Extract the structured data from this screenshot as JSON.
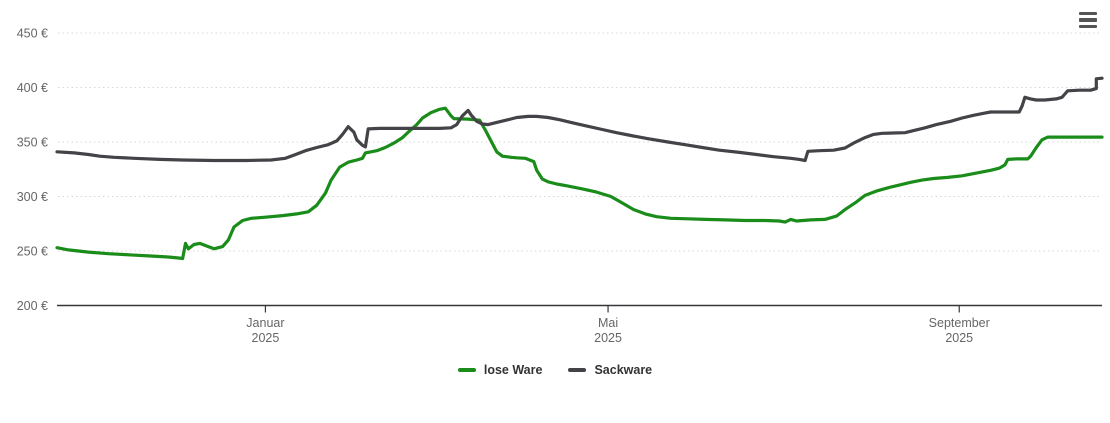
{
  "header": {
    "context_menu_icon": "hamburger-menu-icon"
  },
  "chart_data": {
    "type": "line",
    "title": "",
    "xlabel": "",
    "ylabel": "",
    "y_unit": "€",
    "ylim": [
      200,
      450
    ],
    "xlim": [
      "2024-10-20",
      "2025-10-21"
    ],
    "grid": "dotted-horizontal",
    "legend_position": "bottom-center",
    "colors": {
      "lose_ware": "#1a8c1a",
      "sackware": "#434348",
      "grid_line": "#d8d8d8",
      "axis_line": "#37373a",
      "axis_text": "#666666",
      "legend_text": "#333333"
    },
    "y_ticks": [
      {
        "value": 450,
        "label": "450 €"
      },
      {
        "value": 400,
        "label": "400 €"
      },
      {
        "value": 350,
        "label": "350 €"
      },
      {
        "value": 300,
        "label": "300 €"
      },
      {
        "value": 250,
        "label": "250 €"
      },
      {
        "value": 200,
        "label": "200 €"
      }
    ],
    "x_ticks": [
      {
        "date": "2025-01-01",
        "label": "Januar",
        "sublabel": "2025"
      },
      {
        "date": "2025-05-01",
        "label": "Mai",
        "sublabel": "2025"
      },
      {
        "date": "2025-09-01",
        "label": "September",
        "sublabel": "2025"
      }
    ],
    "series": [
      {
        "name": "lose Ware",
        "color": "#1a8c1a",
        "points": [
          [
            "2024-10-20",
            253
          ],
          [
            "2024-10-24",
            251
          ],
          [
            "2024-10-31",
            249
          ],
          [
            "2024-11-07",
            247.5
          ],
          [
            "2024-11-14",
            246.5
          ],
          [
            "2024-11-21",
            245.5
          ],
          [
            "2024-11-28",
            244.5
          ],
          [
            "2024-12-02",
            243.5
          ],
          [
            "2024-12-03",
            243
          ],
          [
            "2024-12-04",
            257
          ],
          [
            "2024-12-05",
            252
          ],
          [
            "2024-12-07",
            256
          ],
          [
            "2024-12-09",
            257
          ],
          [
            "2024-12-12",
            254
          ],
          [
            "2024-12-14",
            252
          ],
          [
            "2024-12-17",
            254
          ],
          [
            "2024-12-19",
            260
          ],
          [
            "2024-12-21",
            272
          ],
          [
            "2024-12-24",
            278
          ],
          [
            "2024-12-27",
            280
          ],
          [
            "2025-01-01",
            281
          ],
          [
            "2025-01-07",
            282.5
          ],
          [
            "2025-01-12",
            284
          ],
          [
            "2025-01-16",
            286
          ],
          [
            "2025-01-19",
            292
          ],
          [
            "2025-01-22",
            303
          ],
          [
            "2025-01-24",
            315
          ],
          [
            "2025-01-27",
            327
          ],
          [
            "2025-01-30",
            331.5
          ],
          [
            "2025-02-02",
            333.5
          ],
          [
            "2025-02-04",
            335
          ],
          [
            "2025-02-05",
            340
          ],
          [
            "2025-02-09",
            342
          ],
          [
            "2025-02-12",
            345
          ],
          [
            "2025-02-15",
            349
          ],
          [
            "2025-02-18",
            354
          ],
          [
            "2025-02-20",
            359
          ],
          [
            "2025-02-23",
            366
          ],
          [
            "2025-02-25",
            372
          ],
          [
            "2025-02-28",
            377
          ],
          [
            "2025-03-03",
            380
          ],
          [
            "2025-03-05",
            381
          ],
          [
            "2025-03-07",
            374
          ],
          [
            "2025-03-08",
            371.5
          ],
          [
            "2025-03-13",
            371
          ],
          [
            "2025-03-17",
            370
          ],
          [
            "2025-03-19",
            361
          ],
          [
            "2025-03-21",
            351
          ],
          [
            "2025-03-23",
            341
          ],
          [
            "2025-03-25",
            337
          ],
          [
            "2025-03-28",
            336
          ],
          [
            "2025-03-30",
            335.5
          ],
          [
            "2025-04-02",
            335
          ],
          [
            "2025-04-05",
            332
          ],
          [
            "2025-04-06",
            324
          ],
          [
            "2025-04-08",
            316
          ],
          [
            "2025-04-10",
            313.5
          ],
          [
            "2025-04-13",
            311.5
          ],
          [
            "2025-04-17",
            309.5
          ],
          [
            "2025-04-22",
            307
          ],
          [
            "2025-04-27",
            304
          ],
          [
            "2025-05-02",
            300
          ],
          [
            "2025-05-06",
            294
          ],
          [
            "2025-05-10",
            288
          ],
          [
            "2025-05-14",
            284
          ],
          [
            "2025-05-18",
            281.5
          ],
          [
            "2025-05-23",
            280
          ],
          [
            "2025-05-29",
            279.5
          ],
          [
            "2025-06-04",
            279
          ],
          [
            "2025-06-11",
            278.5
          ],
          [
            "2025-06-18",
            278
          ],
          [
            "2025-06-25",
            278
          ],
          [
            "2025-06-30",
            277.5
          ],
          [
            "2025-07-02",
            276.5
          ],
          [
            "2025-07-04",
            279
          ],
          [
            "2025-07-06",
            277.5
          ],
          [
            "2025-07-11",
            278.5
          ],
          [
            "2025-07-16",
            279
          ],
          [
            "2025-07-20",
            282
          ],
          [
            "2025-07-23",
            288
          ],
          [
            "2025-07-27",
            295
          ],
          [
            "2025-07-30",
            301
          ],
          [
            "2025-08-03",
            305
          ],
          [
            "2025-08-07",
            308
          ],
          [
            "2025-08-11",
            310.5
          ],
          [
            "2025-08-15",
            313
          ],
          [
            "2025-08-19",
            315
          ],
          [
            "2025-08-23",
            316.5
          ],
          [
            "2025-08-28",
            317.5
          ],
          [
            "2025-09-02",
            319
          ],
          [
            "2025-09-07",
            321.5
          ],
          [
            "2025-09-12",
            324
          ],
          [
            "2025-09-15",
            326
          ],
          [
            "2025-09-17",
            329
          ],
          [
            "2025-09-18",
            334
          ],
          [
            "2025-09-21",
            334.5
          ],
          [
            "2025-09-25",
            334.5
          ],
          [
            "2025-09-26",
            337
          ],
          [
            "2025-09-28",
            345
          ],
          [
            "2025-09-30",
            352
          ],
          [
            "2025-10-02",
            354.5
          ],
          [
            "2025-10-08",
            354.5
          ],
          [
            "2025-10-15",
            354.5
          ],
          [
            "2025-10-21",
            354.5
          ]
        ]
      },
      {
        "name": "Sackware",
        "color": "#434348",
        "points": [
          [
            "2024-10-20",
            341
          ],
          [
            "2024-10-26",
            340
          ],
          [
            "2024-10-31",
            338.5
          ],
          [
            "2024-11-04",
            337
          ],
          [
            "2024-11-09",
            336
          ],
          [
            "2024-11-16",
            335
          ],
          [
            "2024-11-25",
            334
          ],
          [
            "2024-12-03",
            333.5
          ],
          [
            "2024-12-14",
            333
          ],
          [
            "2024-12-25",
            333
          ],
          [
            "2025-01-03",
            333.5
          ],
          [
            "2025-01-08",
            335
          ],
          [
            "2025-01-11",
            338
          ],
          [
            "2025-01-15",
            342
          ],
          [
            "2025-01-19",
            345
          ],
          [
            "2025-01-23",
            347.5
          ],
          [
            "2025-01-26",
            351
          ],
          [
            "2025-01-28",
            357
          ],
          [
            "2025-01-30",
            364
          ],
          [
            "2025-02-01",
            359
          ],
          [
            "2025-02-02",
            352
          ],
          [
            "2025-02-04",
            347
          ],
          [
            "2025-02-05",
            345.5
          ],
          [
            "2025-02-06",
            362
          ],
          [
            "2025-02-10",
            362.5
          ],
          [
            "2025-02-17",
            362.5
          ],
          [
            "2025-02-24",
            362.5
          ],
          [
            "2025-03-03",
            362.5
          ],
          [
            "2025-03-07",
            363
          ],
          [
            "2025-03-09",
            366
          ],
          [
            "2025-03-11",
            374
          ],
          [
            "2025-03-13",
            379
          ],
          [
            "2025-03-14",
            375
          ],
          [
            "2025-03-16",
            369
          ],
          [
            "2025-03-18",
            366.5
          ],
          [
            "2025-03-20",
            366
          ],
          [
            "2025-03-23",
            368
          ],
          [
            "2025-03-27",
            370.5
          ],
          [
            "2025-03-30",
            372.5
          ],
          [
            "2025-04-03",
            373.5
          ],
          [
            "2025-04-06",
            373.5
          ],
          [
            "2025-04-10",
            372.5
          ],
          [
            "2025-04-14",
            370.5
          ],
          [
            "2025-04-18",
            368
          ],
          [
            "2025-04-23",
            365
          ],
          [
            "2025-04-29",
            361.5
          ],
          [
            "2025-05-04",
            358.5
          ],
          [
            "2025-05-09",
            356
          ],
          [
            "2025-05-15",
            353
          ],
          [
            "2025-05-22",
            350
          ],
          [
            "2025-05-28",
            347.5
          ],
          [
            "2025-06-03",
            345
          ],
          [
            "2025-06-09",
            342.5
          ],
          [
            "2025-06-16",
            340.5
          ],
          [
            "2025-06-22",
            338.5
          ],
          [
            "2025-06-28",
            336.5
          ],
          [
            "2025-07-04",
            335
          ],
          [
            "2025-07-07",
            334
          ],
          [
            "2025-07-09",
            333
          ],
          [
            "2025-07-10",
            341.5
          ],
          [
            "2025-07-14",
            342
          ],
          [
            "2025-07-19",
            342.5
          ],
          [
            "2025-07-23",
            344.5
          ],
          [
            "2025-07-26",
            349
          ],
          [
            "2025-07-30",
            354
          ],
          [
            "2025-08-02",
            357
          ],
          [
            "2025-08-05",
            358
          ],
          [
            "2025-08-13",
            358.5
          ],
          [
            "2025-08-16",
            360.5
          ],
          [
            "2025-08-20",
            363
          ],
          [
            "2025-08-24",
            366
          ],
          [
            "2025-08-29",
            369
          ],
          [
            "2025-09-02",
            372
          ],
          [
            "2025-09-06",
            374.5
          ],
          [
            "2025-09-10",
            376.5
          ],
          [
            "2025-09-12",
            377.5
          ],
          [
            "2025-09-18",
            377.5
          ],
          [
            "2025-09-22",
            377.5
          ],
          [
            "2025-09-23",
            383
          ],
          [
            "2025-09-24",
            391
          ],
          [
            "2025-09-26",
            389.5
          ],
          [
            "2025-09-28",
            388.5
          ],
          [
            "2025-10-01",
            388.5
          ],
          [
            "2025-10-05",
            389.5
          ],
          [
            "2025-10-07",
            391
          ],
          [
            "2025-10-08",
            394
          ],
          [
            "2025-10-09",
            397
          ],
          [
            "2025-10-13",
            397.5
          ],
          [
            "2025-10-17",
            397.5
          ],
          [
            "2025-10-19",
            399
          ],
          [
            "2025-10-19",
            408
          ],
          [
            "2025-10-21",
            408.5
          ]
        ]
      }
    ]
  },
  "legend": {
    "items": [
      {
        "label": "lose Ware",
        "color": "#1a8c1a"
      },
      {
        "label": "Sackware",
        "color": "#434348"
      }
    ]
  }
}
